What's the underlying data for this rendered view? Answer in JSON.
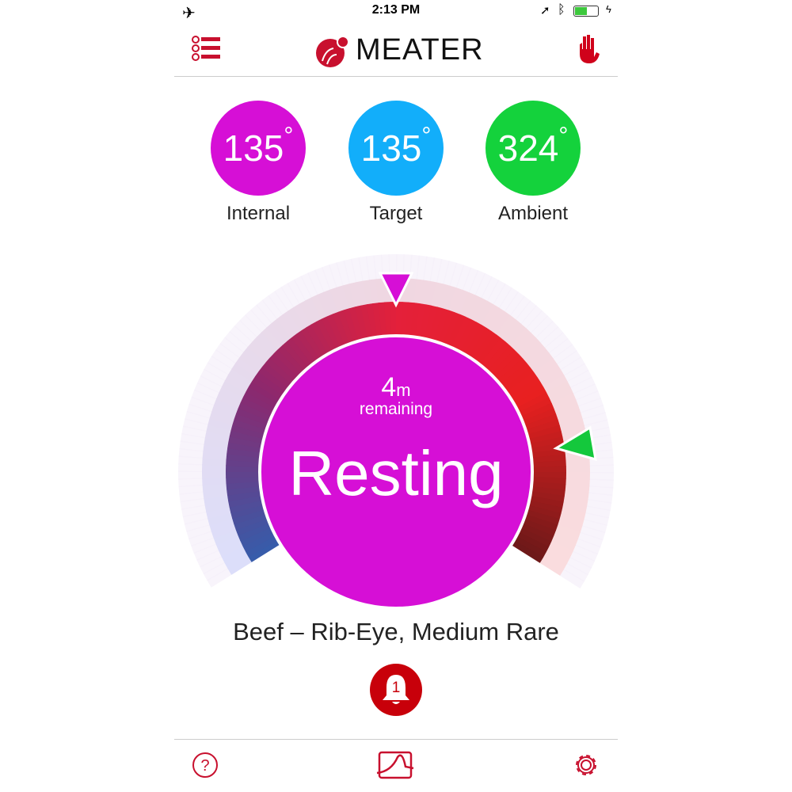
{
  "status_bar": {
    "time": "2:13 PM",
    "airplane_icon": "airplane-icon",
    "battery_level": 0.5
  },
  "header": {
    "title": "MEATER",
    "menu_icon": "list-icon",
    "stop_icon": "hand-icon"
  },
  "temperatures": [
    {
      "value": "135",
      "unit": "°",
      "label": "Internal",
      "color": "#d60fd6"
    },
    {
      "value": "135",
      "unit": "°",
      "label": "Target",
      "color": "#12aefa"
    },
    {
      "value": "324",
      "unit": "°",
      "label": "Ambient",
      "color": "#14d23c"
    }
  ],
  "gauge": {
    "time_value": "4",
    "time_unit": "m",
    "remaining": "remaining",
    "status": "Resting",
    "color": "#d60fd6"
  },
  "cook_name": "Beef – Rib-Eye, Medium Rare",
  "alert": {
    "count": "1",
    "color": "#c8000a"
  },
  "tabbar": {
    "help_icon": "question-icon",
    "graph_icon": "graph-icon",
    "settings_icon": "gear-icon"
  }
}
